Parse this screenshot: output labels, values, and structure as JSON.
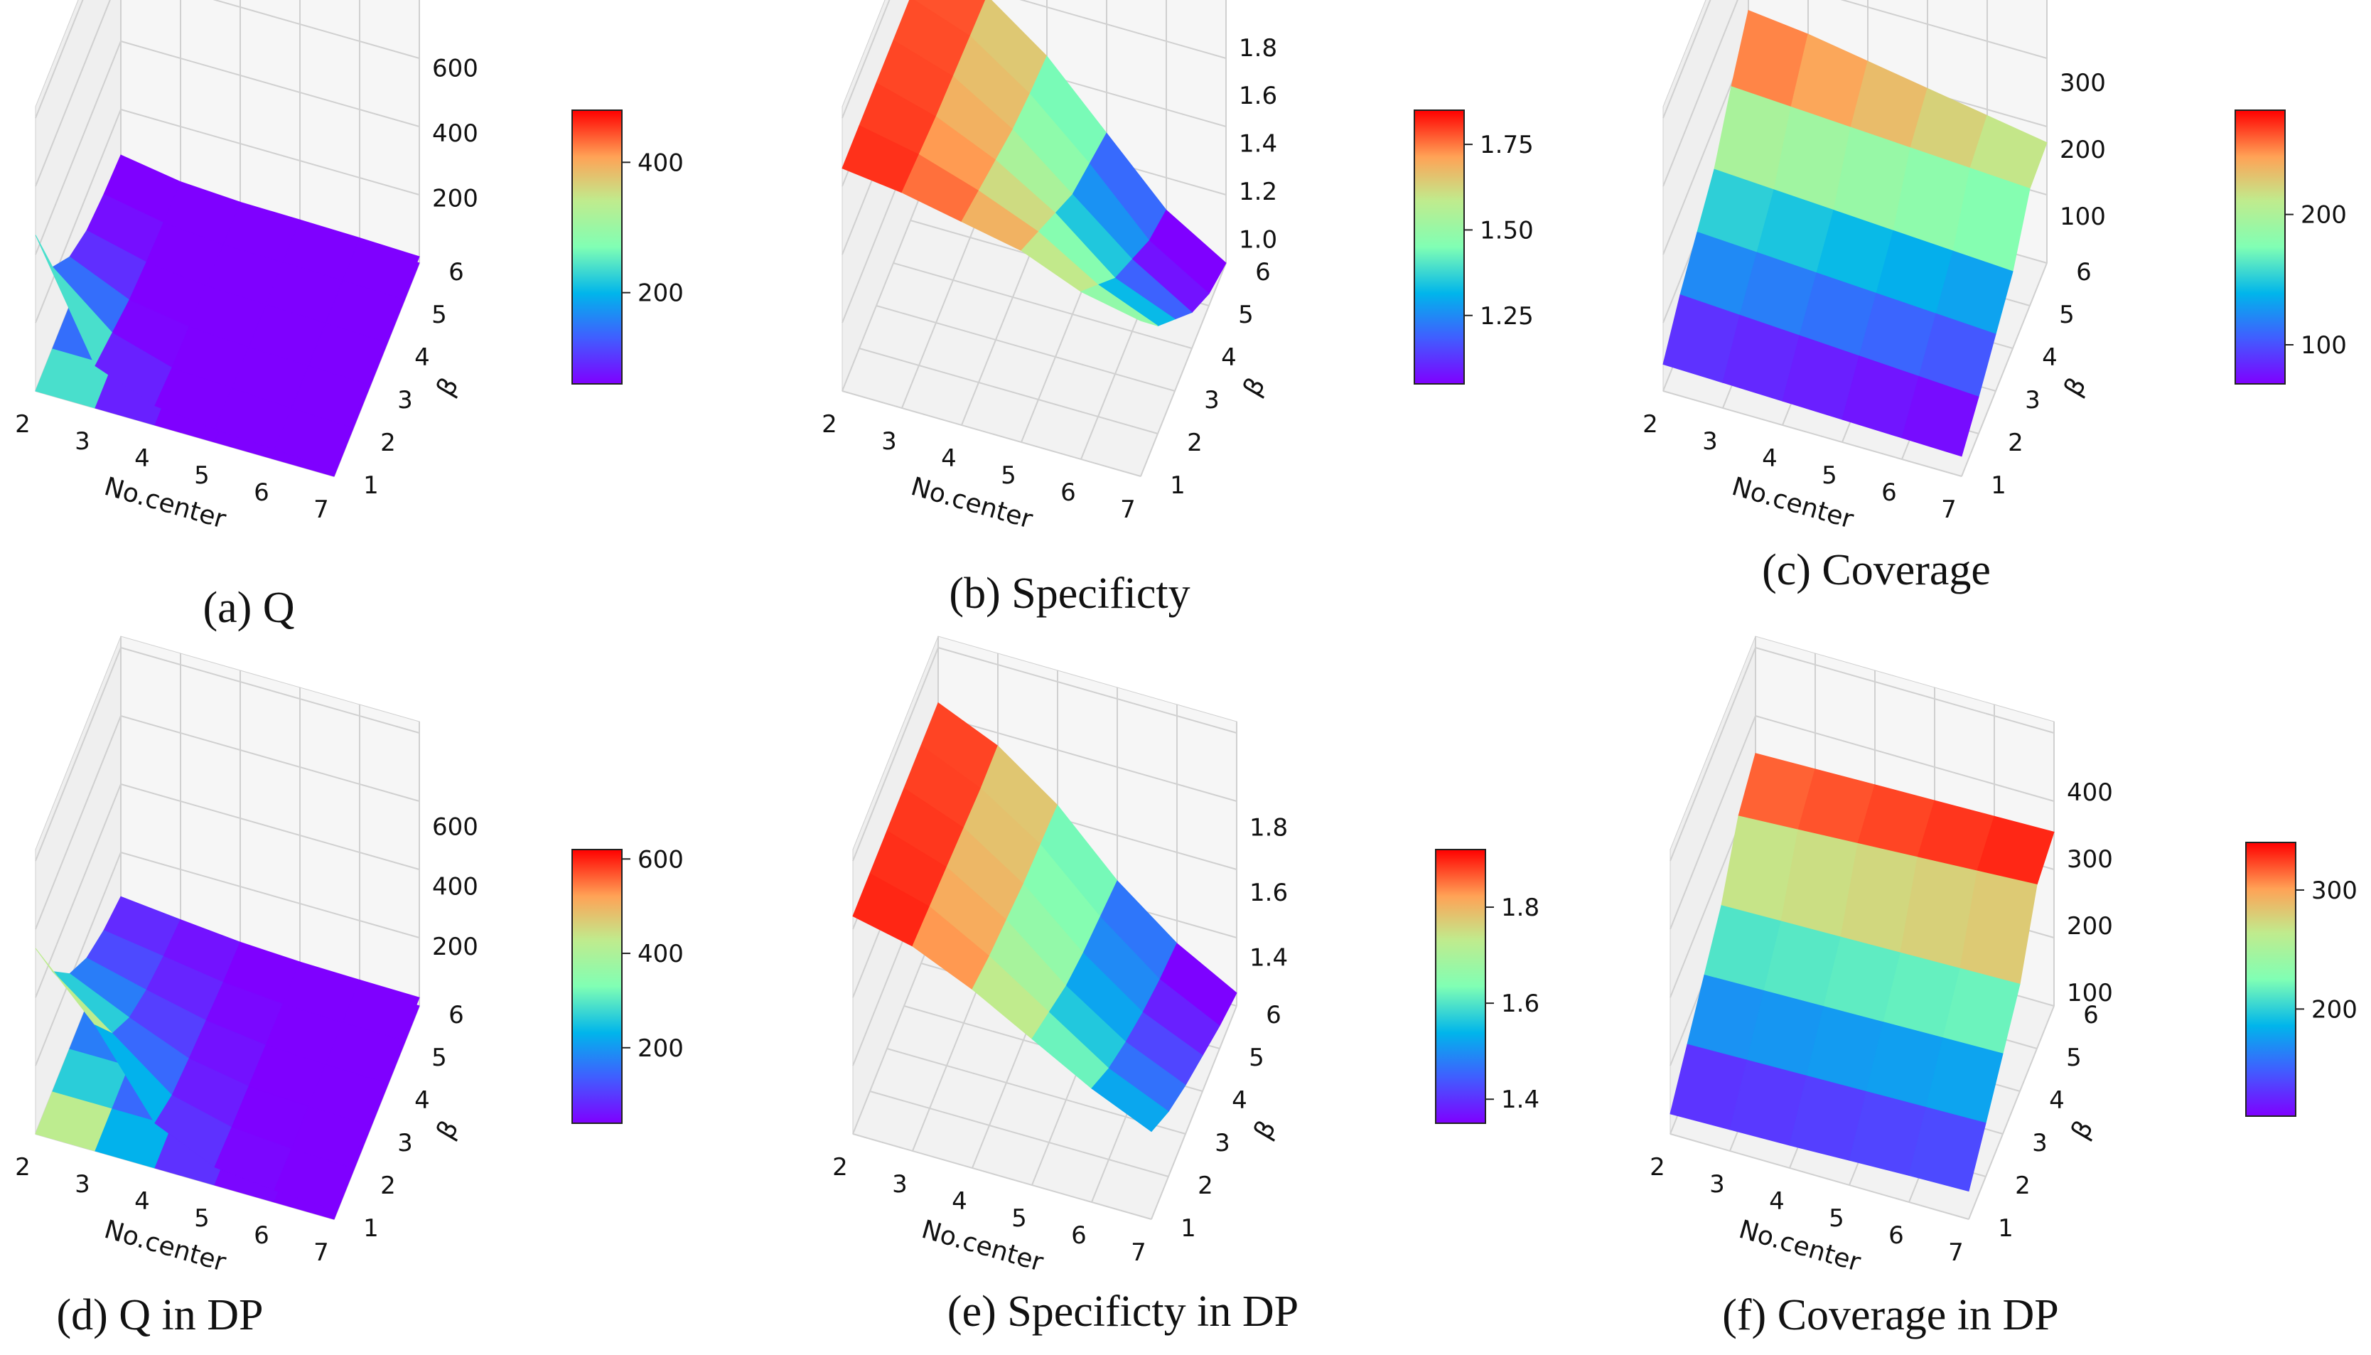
{
  "panels": [
    {
      "caption": "(a) Q",
      "chart_data": {
        "type": "surface3d",
        "xlabel": "No.center",
        "ylabel": "β",
        "zlabel": "",
        "x_ticks": [
          "2",
          "3",
          "4",
          "5",
          "6",
          "7"
        ],
        "y_ticks": [
          "1",
          "2",
          "3",
          "4",
          "5",
          "6"
        ],
        "z_ticks": [
          "200",
          "400",
          "600"
        ],
        "zlim": [
          0,
          700
        ],
        "colorbar_ticks": [
          "200",
          "400"
        ],
        "colorbar_range": [
          60,
          480
        ],
        "contour_projection": true,
        "surface": [
          [
            480,
            130,
            60,
            40,
            30,
            20
          ],
          [
            250,
            100,
            45,
            35,
            25,
            20
          ],
          [
            150,
            70,
            40,
            30,
            25,
            20
          ],
          [
            100,
            55,
            35,
            30,
            25,
            20
          ],
          [
            80,
            45,
            30,
            28,
            25,
            20
          ],
          [
            70,
            40,
            30,
            28,
            25,
            20
          ]
        ],
        "grid": true
      }
    },
    {
      "caption": "(b) Specificty",
      "chart_data": {
        "type": "surface3d",
        "xlabel": "No.center",
        "ylabel": "β",
        "zlabel": "",
        "x_ticks": [
          "2",
          "3",
          "4",
          "5",
          "6",
          "7"
        ],
        "y_ticks": [
          "1",
          "2",
          "3",
          "4",
          "5",
          "6"
        ],
        "z_ticks": [
          "1.0",
          "1.2",
          "1.4",
          "1.6",
          "1.8"
        ],
        "zlim": [
          0.9,
          1.85
        ],
        "colorbar_ticks": [
          "1.25",
          "1.50",
          "1.75"
        ],
        "colorbar_range": [
          1.05,
          1.85
        ],
        "contour_projection": false,
        "surface": [
          [
            1.83,
            1.8,
            1.75,
            1.7,
            1.6,
            1.55
          ],
          [
            1.83,
            1.78,
            1.7,
            1.6,
            1.45,
            1.35
          ],
          [
            1.83,
            1.76,
            1.65,
            1.5,
            1.3,
            1.2
          ],
          [
            1.83,
            1.75,
            1.6,
            1.4,
            1.2,
            1.05
          ],
          [
            1.83,
            1.74,
            1.57,
            1.35,
            1.1,
            0.95
          ],
          [
            1.83,
            1.73,
            1.55,
            1.3,
            1.05,
            0.9
          ]
        ],
        "grid": true
      }
    },
    {
      "caption": "(c) Coverage",
      "chart_data": {
        "type": "surface3d",
        "xlabel": "No.center",
        "ylabel": "β",
        "zlabel": "",
        "x_ticks": [
          "2",
          "3",
          "4",
          "5",
          "6",
          "7"
        ],
        "y_ticks": [
          "1",
          "2",
          "3",
          "4",
          "5",
          "6"
        ],
        "z_ticks": [
          "100",
          "200",
          "300"
        ],
        "zlim": [
          30,
          370
        ],
        "colorbar_ticks": [
          "100",
          "200"
        ],
        "colorbar_range": [
          70,
          280
        ],
        "contour_projection": false,
        "surface": [
          [
            70,
            68,
            66,
            64,
            62,
            60
          ],
          [
            110,
            105,
            100,
            95,
            90,
            85
          ],
          [
            140,
            135,
            130,
            125,
            120,
            115
          ],
          [
            170,
            165,
            160,
            155,
            150,
            145
          ],
          [
            230,
            225,
            220,
            215,
            210,
            205
          ],
          [
            280,
            270,
            255,
            240,
            225,
            210
          ]
        ],
        "grid": true
      }
    },
    {
      "caption": "(d) Q in DP",
      "chart_data": {
        "type": "surface3d",
        "xlabel": "No.center",
        "ylabel": "β",
        "zlabel": "",
        "x_ticks": [
          "2",
          "3",
          "4",
          "5",
          "6",
          "7"
        ],
        "y_ticks": [
          "1",
          "2",
          "3",
          "4",
          "5",
          "6"
        ],
        "z_ticks": [
          "200",
          "400",
          "600"
        ],
        "zlim": [
          0,
          760
        ],
        "colorbar_ticks": [
          "200",
          "400",
          "600"
        ],
        "colorbar_range": [
          40,
          620
        ],
        "contour_projection": true,
        "surface": [
          [
            620,
            420,
            150,
            60,
            40,
            30
          ],
          [
            400,
            250,
            100,
            50,
            35,
            30
          ],
          [
            250,
            160,
            80,
            45,
            35,
            30
          ],
          [
            160,
            110,
            65,
            40,
            32,
            28
          ],
          [
            110,
            80,
            50,
            35,
            30,
            28
          ],
          [
            80,
            60,
            42,
            33,
            30,
            28
          ]
        ],
        "grid": true
      }
    },
    {
      "caption": "(e) Specificty in DP",
      "chart_data": {
        "type": "surface3d",
        "xlabel": "No.center",
        "ylabel": "β",
        "zlabel": "",
        "x_ticks": [
          "2",
          "3",
          "4",
          "5",
          "6",
          "7"
        ],
        "y_ticks": [
          "1",
          "2",
          "3",
          "4",
          "5",
          "6"
        ],
        "z_ticks": [
          "1.4",
          "1.6",
          "1.8"
        ],
        "zlim": [
          1.25,
          1.95
        ],
        "colorbar_ticks": [
          "1.4",
          "1.6",
          "1.8"
        ],
        "colorbar_range": [
          1.35,
          1.92
        ],
        "contour_projection": false,
        "surface": [
          [
            1.92,
            1.88,
            1.8,
            1.7,
            1.6,
            1.52
          ],
          [
            1.92,
            1.87,
            1.77,
            1.65,
            1.53,
            1.45
          ],
          [
            1.92,
            1.86,
            1.75,
            1.6,
            1.48,
            1.4
          ],
          [
            1.92,
            1.85,
            1.73,
            1.57,
            1.44,
            1.36
          ],
          [
            1.92,
            1.84,
            1.72,
            1.55,
            1.41,
            1.32
          ],
          [
            1.92,
            1.84,
            1.71,
            1.53,
            1.39,
            1.29
          ]
        ],
        "grid": true
      }
    },
    {
      "caption": "(f) Coverage in DP",
      "chart_data": {
        "type": "surface3d",
        "xlabel": "No.center",
        "ylabel": "β",
        "zlabel": "",
        "x_ticks": [
          "2",
          "3",
          "4",
          "5",
          "6",
          "7"
        ],
        "y_ticks": [
          "1",
          "2",
          "3",
          "4",
          "5",
          "6"
        ],
        "z_ticks": [
          "100",
          "200",
          "300",
          "400"
        ],
        "zlim": [
          80,
          420
        ],
        "colorbar_ticks": [
          "200",
          "300"
        ],
        "colorbar_range": [
          110,
          340
        ],
        "contour_projection": false,
        "surface": [
          [
            110,
            112,
            114,
            117,
            120,
            122
          ],
          [
            150,
            152,
            154,
            156,
            158,
            160
          ],
          [
            190,
            192,
            194,
            196,
            198,
            200
          ],
          [
            230,
            232,
            234,
            236,
            238,
            240
          ],
          [
            300,
            305,
            310,
            315,
            320,
            325
          ],
          [
            330,
            332,
            334,
            336,
            338,
            340
          ]
        ],
        "grid": true
      }
    }
  ]
}
